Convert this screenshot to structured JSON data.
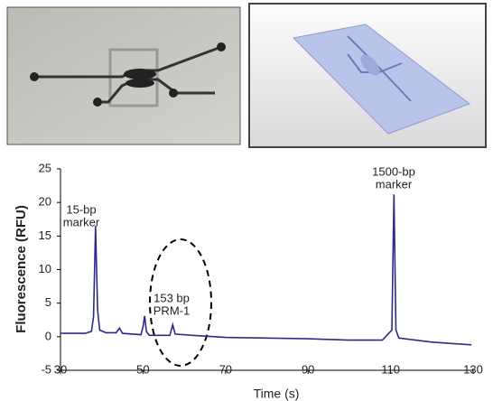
{
  "chart_data": {
    "type": "line",
    "x_label": "Time (s)",
    "y_label": "Fluorescence (RFU)",
    "xlim": [
      30,
      130
    ],
    "xticks": [
      30,
      50,
      70,
      90,
      110,
      130
    ],
    "ylim": [
      -5,
      25
    ],
    "yticks": [
      -5,
      0,
      5,
      10,
      15,
      20,
      25
    ],
    "annotations": [
      [
        "15-bp",
        "marker"
      ],
      [
        "153 bp",
        "PRM-1"
      ],
      [
        "1500-bp",
        "marker"
      ]
    ],
    "series": [
      {
        "color": "#2e2a8c",
        "x": [
          30,
          36,
          37.5,
          38,
          38.5,
          39,
          39.5,
          41,
          43.5,
          44.3,
          45,
          49.5,
          50,
          50.4,
          50.8,
          51.5,
          56.5,
          57.2,
          57.8,
          62,
          70,
          80,
          90,
          100,
          108,
          110.3,
          110.8,
          111.3,
          112,
          120,
          129.6
        ],
        "values": [
          0.5,
          0.5,
          0.8,
          3,
          16.5,
          4,
          1,
          0.6,
          0.6,
          1.3,
          0.5,
          0.3,
          1.5,
          3.1,
          0.8,
          0.2,
          0.2,
          1.8,
          0.4,
          0.2,
          -0.1,
          -0.2,
          -0.3,
          -0.5,
          -0.5,
          1,
          21.2,
          1,
          -0.2,
          -0.8,
          -1.2
        ]
      }
    ]
  }
}
